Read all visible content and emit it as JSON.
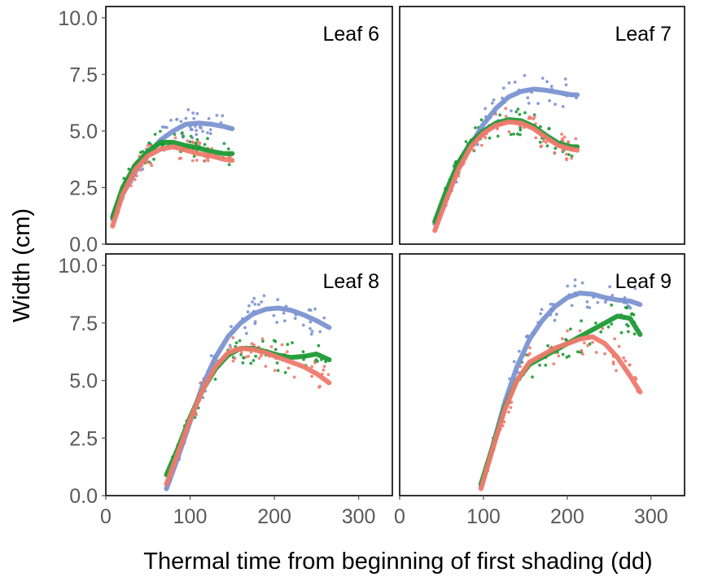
{
  "colors": {
    "blue": "#7b93d1",
    "green": "#1c9a35",
    "red": "#ee7a6d",
    "tick_text": "#595959"
  },
  "x_tick_labels": [
    "0",
    "100",
    "200",
    "300"
  ],
  "y_tick_labels": [
    "0.0",
    "2.5",
    "5.0",
    "7.5",
    "10.0"
  ],
  "chart_data": {
    "type": "scatter",
    "xlabel": "Thermal time from beginning of first shading (dd)",
    "ylabel": "Width (cm)",
    "xlim": [
      0,
      340
    ],
    "ylim": [
      0,
      10.5
    ],
    "grid": false,
    "legend": "none",
    "panels": [
      {
        "label": "Leaf 6",
        "series": [
          {
            "color": "blue",
            "x": [
              8,
              20,
              35,
              50,
              65,
              80,
              95,
              110,
              125,
              140,
              150
            ],
            "y": [
              1.1,
              2.2,
              3.2,
              4.0,
              4.6,
              5.0,
              5.3,
              5.35,
              5.3,
              5.2,
              5.1
            ]
          },
          {
            "color": "green",
            "x": [
              8,
              20,
              35,
              50,
              65,
              80,
              95,
              110,
              125,
              140,
              150
            ],
            "y": [
              1.2,
              2.5,
              3.5,
              4.1,
              4.5,
              4.5,
              4.35,
              4.25,
              4.1,
              4.0,
              4.0
            ]
          },
          {
            "color": "red",
            "x": [
              8,
              20,
              35,
              50,
              65,
              80,
              95,
              110,
              125,
              140,
              150
            ],
            "y": [
              0.8,
              2.2,
              3.3,
              3.9,
              4.2,
              4.3,
              4.15,
              4.0,
              3.9,
              3.75,
              3.7
            ]
          }
        ]
      },
      {
        "label": "Leaf 7",
        "series": [
          {
            "color": "blue",
            "x": [
              42,
              55,
              70,
              85,
              100,
              115,
              130,
              145,
              160,
              175,
              190,
              205,
              212
            ],
            "y": [
              0.9,
              2.0,
              3.3,
              4.4,
              5.3,
              6.0,
              6.5,
              6.75,
              6.85,
              6.8,
              6.7,
              6.6,
              6.6
            ]
          },
          {
            "color": "green",
            "x": [
              42,
              55,
              70,
              85,
              100,
              115,
              130,
              145,
              160,
              175,
              190,
              205,
              212
            ],
            "y": [
              1.0,
              2.3,
              3.6,
              4.5,
              5.0,
              5.35,
              5.5,
              5.45,
              5.2,
              4.8,
              4.45,
              4.3,
              4.3
            ]
          },
          {
            "color": "red",
            "x": [
              42,
              55,
              70,
              85,
              100,
              115,
              130,
              145,
              160,
              175,
              190,
              205,
              212
            ],
            "y": [
              0.6,
              1.9,
              3.3,
              4.3,
              4.9,
              5.25,
              5.4,
              5.35,
              5.1,
              4.7,
              4.35,
              4.2,
              4.15
            ]
          }
        ]
      },
      {
        "label": "Leaf 8",
        "series": [
          {
            "color": "blue",
            "x": [
              72,
              85,
              100,
              115,
              130,
              145,
              160,
              175,
              190,
              205,
              220,
              235,
              250,
              265
            ],
            "y": [
              0.3,
              1.6,
              3.2,
              4.8,
              6.0,
              6.9,
              7.5,
              7.9,
              8.1,
              8.15,
              8.05,
              7.85,
              7.6,
              7.3
            ]
          },
          {
            "color": "green",
            "x": [
              72,
              85,
              100,
              115,
              130,
              145,
              160,
              175,
              190,
              205,
              220,
              235,
              250,
              265
            ],
            "y": [
              0.9,
              2.0,
              3.4,
              4.6,
              5.5,
              6.1,
              6.4,
              6.4,
              6.25,
              6.1,
              6.0,
              6.05,
              6.15,
              5.9
            ]
          },
          {
            "color": "red",
            "x": [
              72,
              85,
              100,
              115,
              130,
              145,
              160,
              175,
              190,
              205,
              220,
              235,
              250,
              265
            ],
            "y": [
              0.5,
              1.8,
              3.3,
              4.6,
              5.6,
              6.2,
              6.4,
              6.35,
              6.2,
              6.0,
              5.8,
              5.6,
              5.3,
              4.9
            ]
          }
        ]
      },
      {
        "label": "Leaf 9",
        "series": [
          {
            "color": "blue",
            "x": [
              97,
              110,
              125,
              140,
              155,
              170,
              185,
              200,
              215,
              230,
              245,
              260,
              275,
              287
            ],
            "y": [
              0.4,
              2.0,
              4.0,
              5.6,
              6.8,
              7.6,
              8.2,
              8.6,
              8.8,
              8.75,
              8.6,
              8.5,
              8.45,
              8.3
            ]
          },
          {
            "color": "green",
            "x": [
              97,
              110,
              125,
              140,
              155,
              170,
              185,
              200,
              215,
              230,
              245,
              260,
              275,
              287
            ],
            "y": [
              0.5,
              2.0,
              3.8,
              5.0,
              5.7,
              6.0,
              6.3,
              6.6,
              6.9,
              7.2,
              7.5,
              7.8,
              7.7,
              7.0
            ]
          },
          {
            "color": "red",
            "x": [
              97,
              110,
              125,
              140,
              155,
              170,
              185,
              200,
              215,
              230,
              245,
              260,
              275,
              287
            ],
            "y": [
              0.3,
              1.9,
              3.7,
              5.0,
              5.8,
              6.1,
              6.4,
              6.6,
              6.8,
              6.9,
              6.6,
              6.0,
              5.2,
              4.5
            ]
          }
        ]
      }
    ]
  }
}
